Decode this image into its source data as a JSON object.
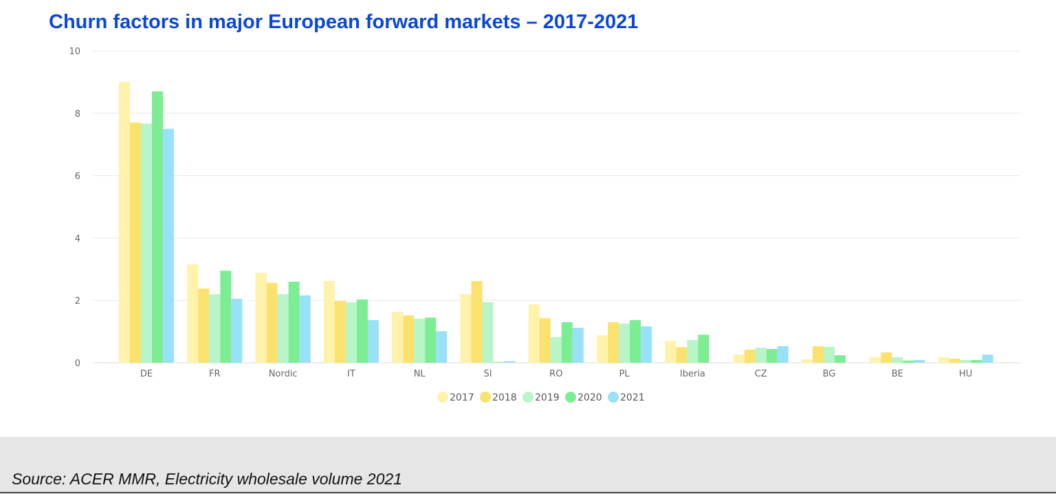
{
  "chart_data": {
    "type": "bar",
    "title": "Churn factors in major European forward markets – 2017-2021",
    "xlabel": "",
    "ylabel": "",
    "ylim": [
      0,
      10
    ],
    "yticks": [
      "0",
      "2",
      "4",
      "6",
      "8",
      "10"
    ],
    "grid": true,
    "legend_position": "bottom-center",
    "categories": [
      "DE",
      "FR",
      "Nordic",
      "IT",
      "NL",
      "SI",
      "RO",
      "PL",
      "Iberia",
      "CZ",
      "BG",
      "BE",
      "HU"
    ],
    "series": [
      {
        "name": "2017",
        "color": "#fff2ab",
        "values": [
          9.0,
          3.15,
          2.88,
          2.62,
          1.63,
          2.2,
          1.87,
          0.88,
          0.7,
          0.26,
          0.11,
          0.18,
          0.18
        ]
      },
      {
        "name": "2018",
        "color": "#fbe26e",
        "values": [
          7.7,
          2.38,
          2.56,
          1.98,
          1.52,
          2.62,
          1.43,
          1.3,
          0.5,
          0.42,
          0.53,
          0.33,
          0.13
        ]
      },
      {
        "name": "2019",
        "color": "#b8f5c8",
        "values": [
          7.67,
          2.2,
          2.2,
          1.94,
          1.41,
          1.94,
          0.82,
          1.26,
          0.73,
          0.48,
          0.51,
          0.18,
          0.09
        ]
      },
      {
        "name": "2020",
        "color": "#7ded93",
        "values": [
          8.7,
          2.95,
          2.6,
          2.03,
          1.45,
          0.02,
          1.3,
          1.37,
          0.9,
          0.44,
          0.24,
          0.07,
          0.09
        ]
      },
      {
        "name": "2021",
        "color": "#99e1f7",
        "values": [
          7.5,
          2.05,
          2.16,
          1.37,
          1.01,
          0.05,
          1.12,
          1.17,
          null,
          0.53,
          null,
          0.09,
          0.26
        ]
      }
    ]
  },
  "footer": {
    "source": "Source: ACER MMR, Electricity wholesale volume 2021"
  }
}
